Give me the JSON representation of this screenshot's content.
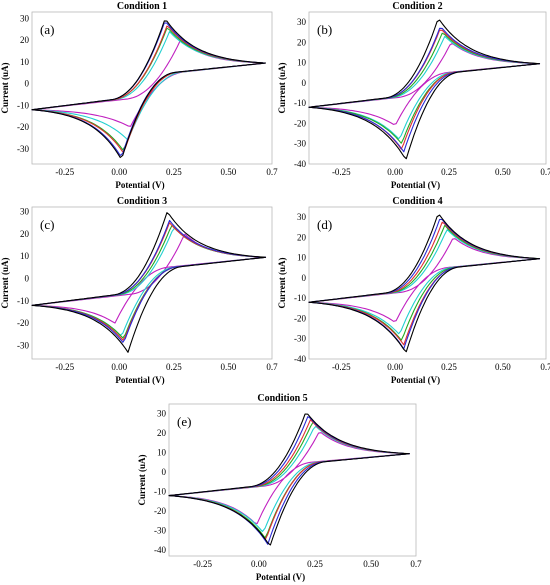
{
  "chart_data": [
    {
      "type": "line",
      "panel_label": "(a)",
      "title": "Condition 1",
      "xlabel": "Potential (V)",
      "ylabel": "Current (uA)",
      "xticks": [
        "-0.25",
        "0.00",
        "0.25",
        "0.50",
        "0.7"
      ],
      "yticks": [
        "30",
        "20",
        "10",
        "0",
        "-10",
        "-20",
        "-30"
      ],
      "xlim": [
        -0.4,
        0.7
      ],
      "ylim": [
        -37,
        33
      ],
      "grid": false,
      "peaks": [
        {
          "color": "#000000",
          "ox_peak": [
            0.21,
            30
          ],
          "red_peak": [
            0.01,
            -35
          ]
        },
        {
          "color": "#2b2bd6",
          "ox_peak": [
            0.21,
            29
          ],
          "red_peak": [
            0.01,
            -34
          ]
        },
        {
          "color": "#e03030",
          "ox_peak": [
            0.22,
            27
          ],
          "red_peak": [
            0.02,
            -32
          ]
        },
        {
          "color": "#22aa22",
          "ox_peak": [
            0.22,
            26
          ],
          "red_peak": [
            0.02,
            -31
          ]
        },
        {
          "color": "#22d0d0",
          "ox_peak": [
            0.23,
            24
          ],
          "red_peak": [
            0.04,
            -26
          ]
        },
        {
          "color": "#c020c0",
          "ox_peak": [
            0.28,
            20
          ],
          "red_peak": [
            0.05,
            -20
          ]
        }
      ]
    },
    {
      "type": "line",
      "panel_label": "(b)",
      "title": "Condition 2",
      "xlabel": "Potential (V)",
      "ylabel": "Current (uA)",
      "xticks": [
        "-0.25",
        "0.00",
        "0.25",
        "0.50",
        "0.7"
      ],
      "yticks": [
        "30",
        "20",
        "10",
        "0",
        "-10",
        "-20",
        "-30",
        "-40"
      ],
      "xlim": [
        -0.4,
        0.7
      ],
      "ylim": [
        -40,
        35
      ],
      "grid": false,
      "peaks": [
        {
          "color": "#000000",
          "ox_peak": [
            0.2,
            32
          ],
          "red_peak": [
            0.05,
            -38
          ]
        },
        {
          "color": "#2b2bd6",
          "ox_peak": [
            0.21,
            28
          ],
          "red_peak": [
            0.04,
            -34
          ]
        },
        {
          "color": "#e03030",
          "ox_peak": [
            0.21,
            27
          ],
          "red_peak": [
            0.03,
            -33
          ]
        },
        {
          "color": "#22aa22",
          "ox_peak": [
            0.22,
            25
          ],
          "red_peak": [
            0.03,
            -30
          ]
        },
        {
          "color": "#22d0d0",
          "ox_peak": [
            0.23,
            23
          ],
          "red_peak": [
            0.02,
            -28
          ]
        },
        {
          "color": "#c020c0",
          "ox_peak": [
            0.26,
            20
          ],
          "red_peak": [
            0.0,
            -21
          ]
        }
      ]
    },
    {
      "type": "line",
      "panel_label": "(c)",
      "title": "Condition 3",
      "xlabel": "Potential (V)",
      "ylabel": "Current (uA)",
      "xticks": [
        "-0.25",
        "0.00",
        "0.25",
        "0.50",
        "0.7"
      ],
      "yticks": [
        "30",
        "20",
        "10",
        "0",
        "-10",
        "-20",
        "-30"
      ],
      "xlim": [
        -0.4,
        0.7
      ],
      "ylim": [
        -36,
        32
      ],
      "grid": false,
      "peaks": [
        {
          "color": "#000000",
          "ox_peak": [
            0.22,
            30
          ],
          "red_peak": [
            0.04,
            -33
          ]
        },
        {
          "color": "#2b2bd6",
          "ox_peak": [
            0.23,
            26
          ],
          "red_peak": [
            0.02,
            -29
          ]
        },
        {
          "color": "#e03030",
          "ox_peak": [
            0.23,
            25
          ],
          "red_peak": [
            0.02,
            -28
          ]
        },
        {
          "color": "#22aa22",
          "ox_peak": [
            0.24,
            24
          ],
          "red_peak": [
            0.02,
            -27
          ]
        },
        {
          "color": "#22d0d0",
          "ox_peak": [
            0.25,
            23
          ],
          "red_peak": [
            0.01,
            -26
          ]
        },
        {
          "color": "#c020c0",
          "ox_peak": [
            0.3,
            20
          ],
          "red_peak": [
            -0.02,
            -20
          ]
        }
      ]
    },
    {
      "type": "line",
      "panel_label": "(d)",
      "title": "Condition 4",
      "xlabel": "Potential (V)",
      "ylabel": "Current (uA)",
      "xticks": [
        "-0.25",
        "0.00",
        "0.25",
        "0.50",
        "0.7"
      ],
      "yticks": [
        "30",
        "20",
        "10",
        "0",
        "-10",
        "-20",
        "-30",
        "-40"
      ],
      "xlim": [
        -0.4,
        0.7
      ],
      "ylim": [
        -40,
        35
      ],
      "grid": false,
      "peaks": [
        {
          "color": "#000000",
          "ox_peak": [
            0.2,
            32
          ],
          "red_peak": [
            0.05,
            -37
          ]
        },
        {
          "color": "#2b2bd6",
          "ox_peak": [
            0.21,
            30
          ],
          "red_peak": [
            0.04,
            -35
          ]
        },
        {
          "color": "#e03030",
          "ox_peak": [
            0.22,
            28
          ],
          "red_peak": [
            0.04,
            -33
          ]
        },
        {
          "color": "#22aa22",
          "ox_peak": [
            0.23,
            26
          ],
          "red_peak": [
            0.03,
            -31
          ]
        },
        {
          "color": "#22d0d0",
          "ox_peak": [
            0.24,
            24
          ],
          "red_peak": [
            0.02,
            -28
          ]
        },
        {
          "color": "#c020c0",
          "ox_peak": [
            0.27,
            20
          ],
          "red_peak": [
            0.0,
            -22
          ]
        }
      ]
    },
    {
      "type": "line",
      "panel_label": "(e)",
      "title": "Condition 5",
      "xlabel": "Potential (V)",
      "ylabel": "Current (uA)",
      "xticks": [
        "-0.25",
        "0.00",
        "0.25",
        "0.50",
        "0.7"
      ],
      "yticks": [
        "30",
        "20",
        "10",
        "0",
        "-10",
        "-20",
        "-30",
        "-40"
      ],
      "xlim": [
        -0.4,
        0.7
      ],
      "ylim": [
        -43,
        35
      ],
      "grid": false,
      "peaks": [
        {
          "color": "#000000",
          "ox_peak": [
            0.21,
            31
          ],
          "red_peak": [
            0.05,
            -38
          ]
        },
        {
          "color": "#2b2bd6",
          "ox_peak": [
            0.22,
            29
          ],
          "red_peak": [
            0.04,
            -37
          ]
        },
        {
          "color": "#e03030",
          "ox_peak": [
            0.23,
            27
          ],
          "red_peak": [
            0.03,
            -35
          ]
        },
        {
          "color": "#22aa22",
          "ox_peak": [
            0.24,
            26
          ],
          "red_peak": [
            0.03,
            -34
          ]
        },
        {
          "color": "#22d0d0",
          "ox_peak": [
            0.25,
            24
          ],
          "red_peak": [
            0.02,
            -31
          ]
        },
        {
          "color": "#c020c0",
          "ox_peak": [
            0.27,
            21
          ],
          "red_peak": [
            -0.01,
            -27
          ]
        }
      ]
    }
  ]
}
